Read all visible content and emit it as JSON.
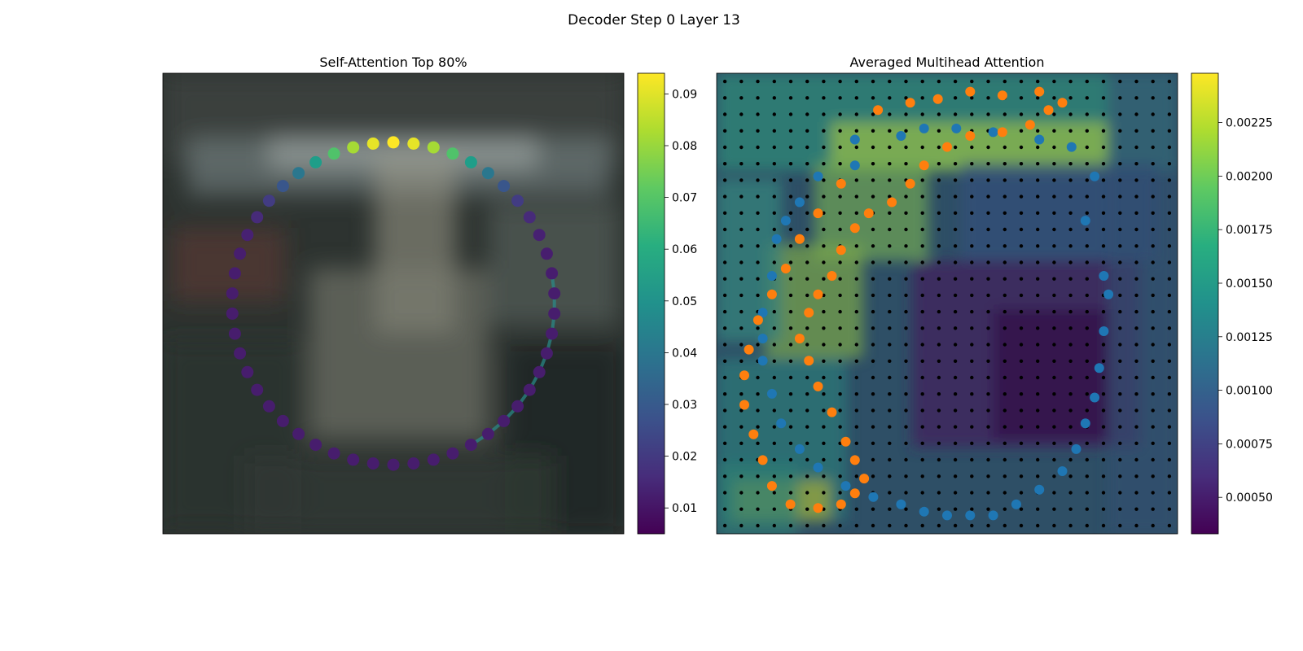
{
  "figure": {
    "suptitle": "Decoder Step 0 Layer 13"
  },
  "chart_data": [
    {
      "type": "scatter",
      "title": "Self-Attention Top 80%",
      "background": "blurred photo",
      "colormap": "viridis",
      "colorbar": {
        "min": 0.005,
        "max": 0.094,
        "ticks": [
          0.01,
          0.02,
          0.03,
          0.04,
          0.05,
          0.06,
          0.07,
          0.08,
          0.09
        ],
        "tick_labels": [
          "0.01",
          "0.02",
          "0.03",
          "0.04",
          "0.05",
          "0.06",
          "0.07",
          "0.08",
          "0.09"
        ]
      },
      "points": {
        "num_points": 50,
        "shape": "circle",
        "center": [
          0.5,
          0.5
        ],
        "radius": 0.35,
        "start_angle_deg": 90,
        "peak_value": 0.094,
        "base_value": 0.012,
        "spread": 0.45
      },
      "highlight_path": {
        "description": "top 80% attention polyline",
        "indices": [
          36,
          37,
          38,
          39,
          40,
          41,
          42,
          43,
          44,
          45,
          46
        ]
      }
    },
    {
      "type": "scatter",
      "title": "Averaged Multihead Attention",
      "background": "attention heatmap over blurred photo",
      "colormap": "viridis",
      "grid_cells": 28,
      "colorbar": {
        "min": 0.00033,
        "max": 0.00248,
        "ticks": [
          0.0005,
          0.00075,
          0.001,
          0.00125,
          0.0015,
          0.00175,
          0.002,
          0.00225
        ],
        "tick_labels": [
          "0.00050",
          "0.00075",
          "0.00100",
          "0.00125",
          "0.00150",
          "0.00175",
          "0.00200",
          "0.00225"
        ]
      },
      "series": [
        {
          "color": "#1f77b4",
          "marker": "circle",
          "points": [
            [
              0.3,
              0.18
            ],
            [
              0.4,
              0.17
            ],
            [
              0.45,
              0.15
            ],
            [
              0.52,
              0.15
            ],
            [
              0.6,
              0.16
            ],
            [
              0.7,
              0.18
            ],
            [
              0.77,
              0.2
            ],
            [
              0.82,
              0.28
            ],
            [
              0.8,
              0.4
            ],
            [
              0.84,
              0.55
            ],
            [
              0.85,
              0.6
            ],
            [
              0.84,
              0.7
            ],
            [
              0.83,
              0.8
            ],
            [
              0.82,
              0.88
            ],
            [
              0.8,
              0.95
            ],
            [
              0.78,
              1.02
            ],
            [
              0.75,
              1.08
            ],
            [
              0.7,
              1.13
            ],
            [
              0.65,
              1.17
            ],
            [
              0.6,
              1.2
            ],
            [
              0.55,
              1.2
            ],
            [
              0.5,
              1.2
            ],
            [
              0.45,
              1.19
            ],
            [
              0.4,
              1.17
            ],
            [
              0.34,
              1.15
            ],
            [
              0.28,
              1.12
            ],
            [
              0.22,
              1.07
            ],
            [
              0.18,
              1.02
            ],
            [
              0.14,
              0.95
            ],
            [
              0.12,
              0.87
            ],
            [
              0.1,
              0.78
            ],
            [
              0.1,
              0.72
            ],
            [
              0.1,
              0.65
            ],
            [
              0.12,
              0.55
            ],
            [
              0.13,
              0.45
            ],
            [
              0.15,
              0.4
            ],
            [
              0.18,
              0.35
            ],
            [
              0.22,
              0.28
            ],
            [
              0.3,
              0.25
            ]
          ]
        },
        {
          "color": "#ff7f0e",
          "marker": "circle",
          "points": [
            [
              0.35,
              0.1
            ],
            [
              0.42,
              0.08
            ],
            [
              0.48,
              0.07
            ],
            [
              0.55,
              0.05
            ],
            [
              0.62,
              0.06
            ],
            [
              0.7,
              0.05
            ],
            [
              0.75,
              0.08
            ],
            [
              0.72,
              0.1
            ],
            [
              0.68,
              0.14
            ],
            [
              0.62,
              0.16
            ],
            [
              0.55,
              0.17
            ],
            [
              0.5,
              0.2
            ],
            [
              0.45,
              0.25
            ],
            [
              0.42,
              0.3
            ],
            [
              0.38,
              0.35
            ],
            [
              0.33,
              0.38
            ],
            [
              0.3,
              0.42
            ],
            [
              0.27,
              0.48
            ],
            [
              0.25,
              0.55
            ],
            [
              0.22,
              0.6
            ],
            [
              0.2,
              0.65
            ],
            [
              0.18,
              0.72
            ],
            [
              0.2,
              0.78
            ],
            [
              0.22,
              0.85
            ],
            [
              0.25,
              0.92
            ],
            [
              0.28,
              1.0
            ],
            [
              0.3,
              1.05
            ],
            [
              0.32,
              1.1
            ],
            [
              0.3,
              1.14
            ],
            [
              0.27,
              1.17
            ],
            [
              0.22,
              1.18
            ],
            [
              0.16,
              1.17
            ],
            [
              0.12,
              1.12
            ],
            [
              0.1,
              1.05
            ],
            [
              0.08,
              0.98
            ],
            [
              0.06,
              0.9
            ],
            [
              0.06,
              0.82
            ],
            [
              0.07,
              0.75
            ],
            [
              0.09,
              0.67
            ],
            [
              0.12,
              0.6
            ],
            [
              0.15,
              0.53
            ],
            [
              0.18,
              0.45
            ],
            [
              0.22,
              0.38
            ],
            [
              0.27,
              0.3
            ]
          ]
        }
      ]
    }
  ]
}
